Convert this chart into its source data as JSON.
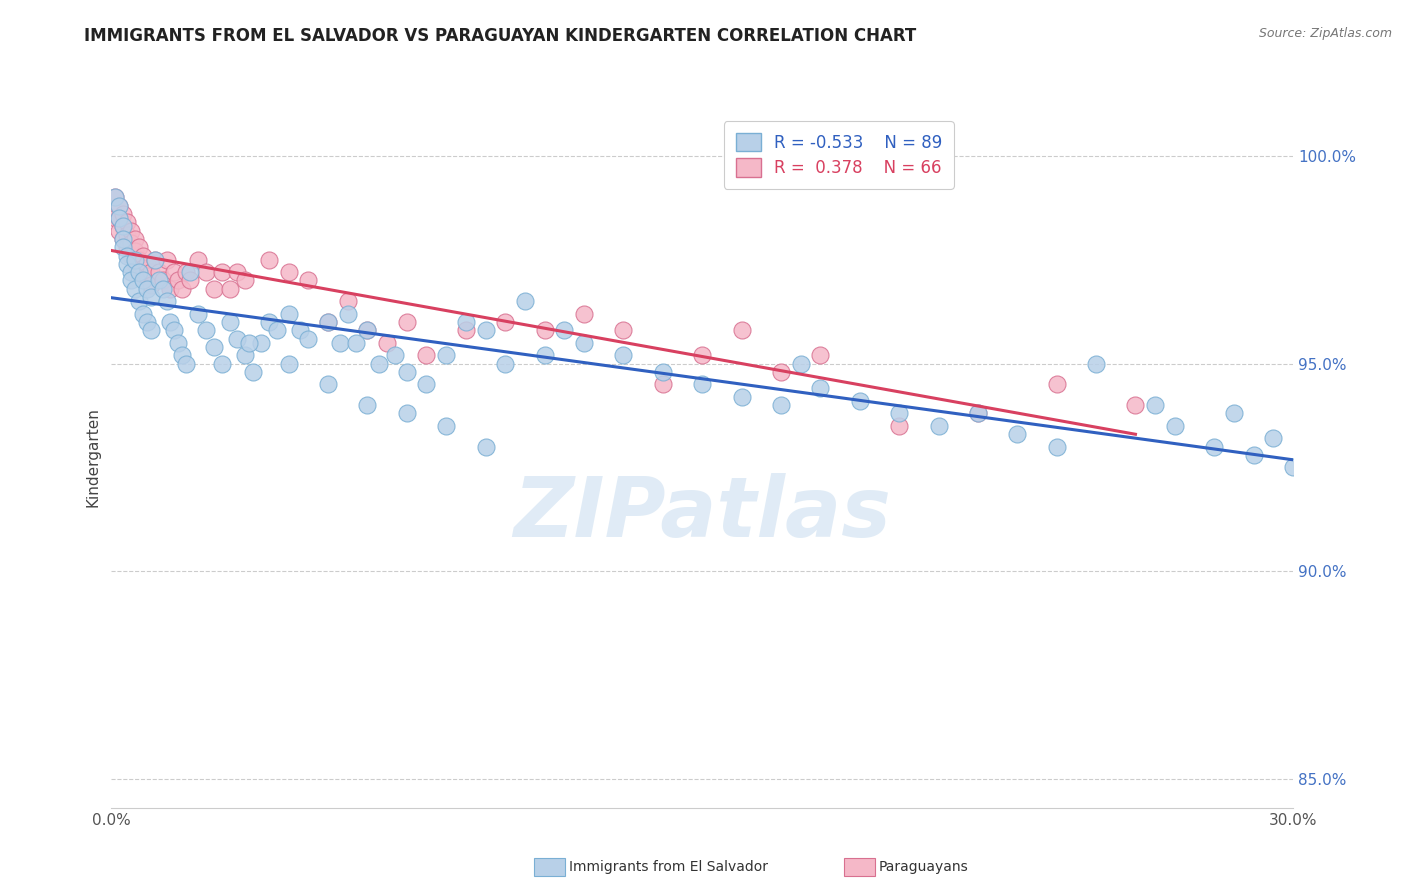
{
  "title": "IMMIGRANTS FROM EL SALVADOR VS PARAGUAYAN KINDERGARTEN CORRELATION CHART",
  "source_text": "Source: ZipAtlas.com",
  "ylabel": "Kindergarten",
  "xlim": [
    0.0,
    0.3
  ],
  "ylim": [
    0.843,
    1.012
  ],
  "x_tick_positions": [
    0.0,
    0.3
  ],
  "x_tick_labels": [
    "0.0%",
    "30.0%"
  ],
  "y_tick_positions": [
    0.85,
    0.9,
    0.95,
    1.0
  ],
  "y_tick_labels": [
    "85.0%",
    "90.0%",
    "95.0%",
    "100.0%"
  ],
  "legend_line1_r": "R = -0.533",
  "legend_line1_n": "N = 89",
  "legend_line2_r": "R =  0.378",
  "legend_line2_n": "N = 66",
  "blue_color": "#b8d0e8",
  "blue_edge": "#7aafd4",
  "blue_line_color": "#3060c0",
  "pink_color": "#f5b8c8",
  "pink_edge": "#d87090",
  "pink_line_color": "#d84060",
  "watermark": "ZIPatlas",
  "blue_x": [
    0.001,
    0.002,
    0.002,
    0.003,
    0.003,
    0.003,
    0.004,
    0.004,
    0.005,
    0.005,
    0.006,
    0.006,
    0.007,
    0.007,
    0.008,
    0.008,
    0.009,
    0.009,
    0.01,
    0.01,
    0.011,
    0.012,
    0.013,
    0.014,
    0.015,
    0.016,
    0.017,
    0.018,
    0.019,
    0.02,
    0.022,
    0.024,
    0.026,
    0.028,
    0.03,
    0.032,
    0.034,
    0.036,
    0.038,
    0.04,
    0.042,
    0.045,
    0.048,
    0.05,
    0.055,
    0.058,
    0.06,
    0.062,
    0.065,
    0.068,
    0.072,
    0.075,
    0.08,
    0.085,
    0.09,
    0.095,
    0.1,
    0.105,
    0.11,
    0.115,
    0.12,
    0.13,
    0.14,
    0.15,
    0.16,
    0.17,
    0.175,
    0.18,
    0.19,
    0.2,
    0.21,
    0.22,
    0.23,
    0.24,
    0.25,
    0.265,
    0.27,
    0.28,
    0.285,
    0.29,
    0.295,
    0.3,
    0.035,
    0.045,
    0.055,
    0.065,
    0.075,
    0.085,
    0.095
  ],
  "blue_y": [
    0.99,
    0.988,
    0.985,
    0.983,
    0.98,
    0.978,
    0.976,
    0.974,
    0.972,
    0.97,
    0.975,
    0.968,
    0.972,
    0.965,
    0.97,
    0.962,
    0.968,
    0.96,
    0.966,
    0.958,
    0.975,
    0.97,
    0.968,
    0.965,
    0.96,
    0.958,
    0.955,
    0.952,
    0.95,
    0.972,
    0.962,
    0.958,
    0.954,
    0.95,
    0.96,
    0.956,
    0.952,
    0.948,
    0.955,
    0.96,
    0.958,
    0.962,
    0.958,
    0.956,
    0.96,
    0.955,
    0.962,
    0.955,
    0.958,
    0.95,
    0.952,
    0.948,
    0.945,
    0.952,
    0.96,
    0.958,
    0.95,
    0.965,
    0.952,
    0.958,
    0.955,
    0.952,
    0.948,
    0.945,
    0.942,
    0.94,
    0.95,
    0.944,
    0.941,
    0.938,
    0.935,
    0.938,
    0.933,
    0.93,
    0.95,
    0.94,
    0.935,
    0.93,
    0.938,
    0.928,
    0.932,
    0.925,
    0.955,
    0.95,
    0.945,
    0.94,
    0.938,
    0.935,
    0.93
  ],
  "pink_x": [
    0.001,
    0.001,
    0.002,
    0.002,
    0.002,
    0.003,
    0.003,
    0.003,
    0.004,
    0.004,
    0.004,
    0.005,
    0.005,
    0.005,
    0.006,
    0.006,
    0.006,
    0.007,
    0.007,
    0.007,
    0.008,
    0.008,
    0.009,
    0.009,
    0.01,
    0.01,
    0.011,
    0.012,
    0.013,
    0.014,
    0.015,
    0.016,
    0.017,
    0.018,
    0.019,
    0.02,
    0.022,
    0.024,
    0.026,
    0.028,
    0.03,
    0.032,
    0.034,
    0.04,
    0.045,
    0.05,
    0.055,
    0.06,
    0.065,
    0.07,
    0.075,
    0.08,
    0.09,
    0.1,
    0.11,
    0.12,
    0.13,
    0.14,
    0.15,
    0.16,
    0.17,
    0.18,
    0.2,
    0.22,
    0.24,
    0.26
  ],
  "pink_y": [
    0.985,
    0.99,
    0.988,
    0.985,
    0.982,
    0.986,
    0.983,
    0.98,
    0.984,
    0.981,
    0.978,
    0.982,
    0.979,
    0.976,
    0.98,
    0.977,
    0.974,
    0.978,
    0.975,
    0.972,
    0.976,
    0.973,
    0.974,
    0.971,
    0.972,
    0.969,
    0.975,
    0.972,
    0.97,
    0.975,
    0.968,
    0.972,
    0.97,
    0.968,
    0.972,
    0.97,
    0.975,
    0.972,
    0.968,
    0.972,
    0.968,
    0.972,
    0.97,
    0.975,
    0.972,
    0.97,
    0.96,
    0.965,
    0.958,
    0.955,
    0.96,
    0.952,
    0.958,
    0.96,
    0.958,
    0.962,
    0.958,
    0.945,
    0.952,
    0.958,
    0.948,
    0.952,
    0.935,
    0.938,
    0.945,
    0.94
  ]
}
